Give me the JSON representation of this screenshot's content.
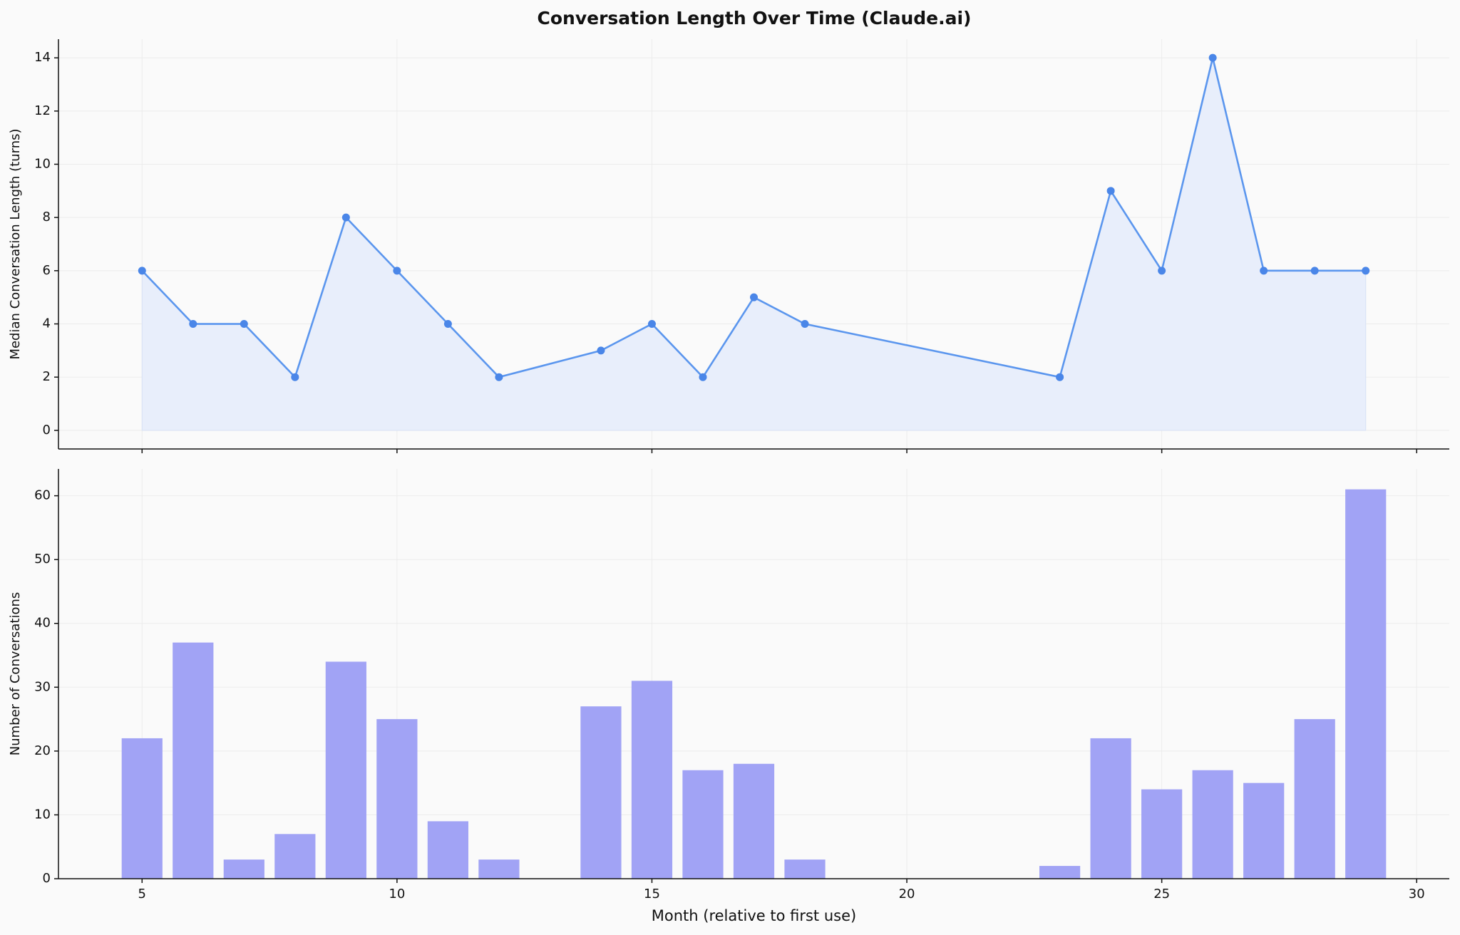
{
  "title": "Conversation Length Over Time (Claude.ai)",
  "chart_data": [
    {
      "type": "line",
      "ylabel": "Median Conversation Length (turns)",
      "x": [
        5,
        6,
        7,
        8,
        9,
        10,
        11,
        12,
        14,
        15,
        16,
        17,
        18,
        23,
        24,
        25,
        26,
        27,
        28,
        29
      ],
      "values": [
        6,
        4,
        4,
        2,
        8,
        6,
        4,
        2,
        3,
        4,
        2,
        5,
        4,
        2,
        9,
        6,
        14,
        6,
        6,
        6
      ],
      "color": "#5b96ee",
      "marker_color": "#4a86e8",
      "fill_color": "#e8eefb",
      "xlim": [
        3.36,
        30.64
      ],
      "ylim": [
        -0.7,
        14.7
      ],
      "yticks": [
        0,
        2,
        4,
        6,
        8,
        10,
        12,
        14
      ],
      "grid": true
    },
    {
      "type": "bar",
      "ylabel": "Number of Conversations",
      "xlabel": "Month (relative to first use)",
      "x": [
        5,
        6,
        7,
        8,
        9,
        10,
        11,
        12,
        14,
        15,
        16,
        17,
        18,
        23,
        24,
        25,
        26,
        27,
        28,
        29
      ],
      "values": [
        22,
        37,
        3,
        7,
        34,
        25,
        9,
        3,
        27,
        31,
        17,
        18,
        3,
        2,
        22,
        14,
        17,
        15,
        25,
        61
      ],
      "color": "#a1a3f5",
      "bar_width": 0.8,
      "xlim": [
        3.36,
        30.64
      ],
      "ylim": [
        0,
        64.2
      ],
      "xticks": [
        5,
        10,
        15,
        20,
        25,
        30
      ],
      "yticks": [
        0,
        10,
        20,
        30,
        40,
        50,
        60
      ],
      "grid": true
    }
  ]
}
